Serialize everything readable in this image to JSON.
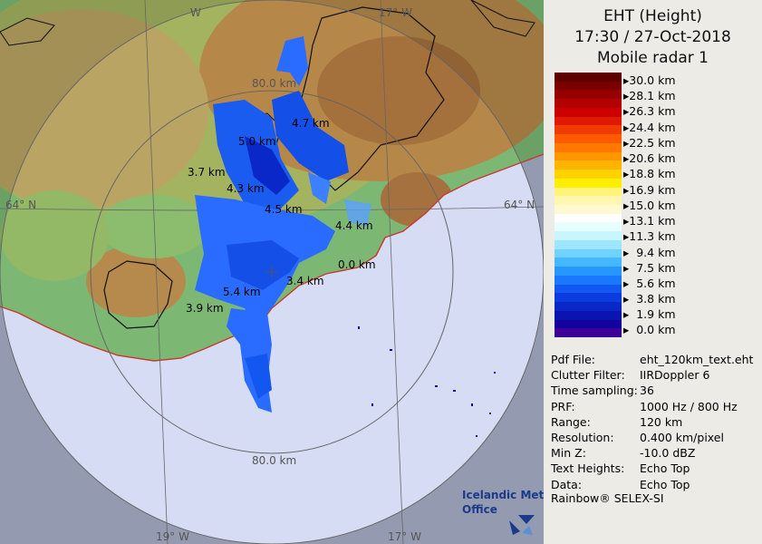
{
  "header": {
    "product": "EHT (Height)",
    "datetime": "17:30 / 27-Oct-2018",
    "radar": "Mobile radar 1"
  },
  "legend": {
    "colors": [
      "#5e0000",
      "#7a0000",
      "#960000",
      "#b30000",
      "#cc0000",
      "#e01a00",
      "#f03c00",
      "#ff5a00",
      "#ff7800",
      "#ff9600",
      "#ffb400",
      "#ffd200",
      "#ffee00",
      "#fff37a",
      "#fff6b0",
      "#fff9d2",
      "#ffffff",
      "#e8ffff",
      "#c8f6ff",
      "#9ee6ff",
      "#70d2ff",
      "#46b8ff",
      "#2896ff",
      "#1a78ff",
      "#1258f0",
      "#0a3ce0",
      "#0a28c8",
      "#0a14b0",
      "#14009a",
      "#3c0096"
    ],
    "labels": [
      "30.0 km",
      "28.1 km",
      "26.3 km",
      "24.4 km",
      "22.5 km",
      "20.6 km",
      "18.8 km",
      "16.9 km",
      "15.0 km",
      "13.1 km",
      "11.3 km",
      "9.4 km",
      "7.5 km",
      "5.6 km",
      "3.8 km",
      "1.9 km",
      "0.0 km"
    ]
  },
  "info": [
    {
      "key": "Pdf File:",
      "value": "eht_120km_text.eht"
    },
    {
      "key": "Clutter Filter:",
      "value": "IIRDoppler 6"
    },
    {
      "key": "Time sampling:",
      "value": "36"
    },
    {
      "key": "PRF:",
      "value": "1000 Hz / 800 Hz"
    },
    {
      "key": "Range:",
      "value": "120 km"
    },
    {
      "key": "Resolution:",
      "value": "0.400 km/pixel"
    },
    {
      "key": "Min Z:",
      "value": "-10.0 dBZ"
    },
    {
      "key": "Text Heights:",
      "value": "Echo Top"
    },
    {
      "key": "Data:",
      "value": "Echo Top"
    }
  ],
  "footer": "Rainbow® SELEX-SI",
  "map": {
    "logo_line1": "Icelandic Met",
    "logo_line2": "Office",
    "graticule": {
      "lon_top_left": "W",
      "lon_top_right": "17° W",
      "lat_left": "64° N",
      "lat_right": "64° N",
      "lon_bottom_left": "19° W",
      "lon_bottom_right": "17° W"
    },
    "range_rings": {
      "inner_label_top": "80.0 km",
      "inner_label_bottom": "80.0 km"
    },
    "echo_top_labels": [
      "4.7 km",
      "5.0 km",
      "3.7 km",
      "4.3 km",
      "4.5 km",
      "4.4 km",
      "0.0 km",
      "3.4 km",
      "5.4 km",
      "3.9 km"
    ]
  }
}
